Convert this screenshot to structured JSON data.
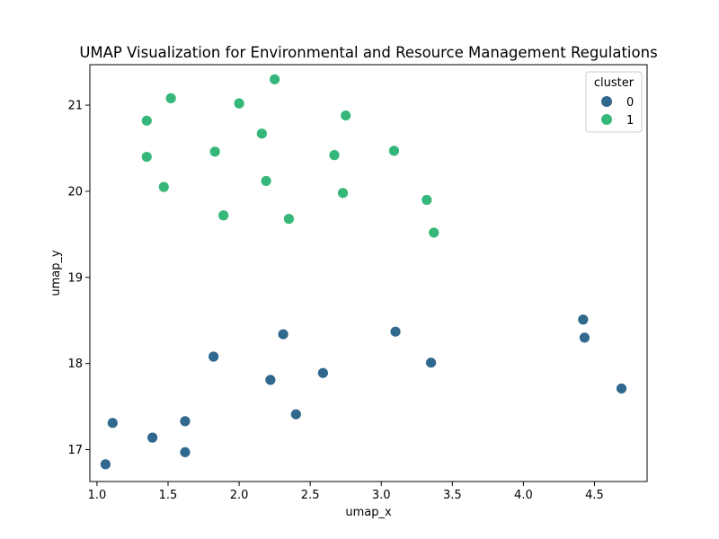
{
  "chart_data": {
    "type": "scatter",
    "title": "UMAP Visualization for Environmental and Resource Management Regulations",
    "xlabel": "umap_x",
    "ylabel": "umap_y",
    "xlim": [
      0.95,
      4.87
    ],
    "ylim": [
      16.63,
      21.47
    ],
    "xticks": [
      "1.0",
      "1.5",
      "2.0",
      "2.5",
      "3.0",
      "3.5",
      "4.0",
      "4.5"
    ],
    "xtick_values": [
      1.0,
      1.5,
      2.0,
      2.5,
      3.0,
      3.5,
      4.0,
      4.5
    ],
    "yticks": [
      "17",
      "18",
      "19",
      "20",
      "21"
    ],
    "ytick_values": [
      17,
      18,
      19,
      20,
      21
    ],
    "grid": false,
    "legend": {
      "title": "cluster",
      "placement": "top-right"
    },
    "series": [
      {
        "name": "0",
        "color": "#31688e",
        "points": [
          [
            1.06,
            16.83
          ],
          [
            1.11,
            17.31
          ],
          [
            1.39,
            17.14
          ],
          [
            1.62,
            17.33
          ],
          [
            1.62,
            16.97
          ],
          [
            1.82,
            18.08
          ],
          [
            2.22,
            17.81
          ],
          [
            2.31,
            18.34
          ],
          [
            2.4,
            17.41
          ],
          [
            2.59,
            17.89
          ],
          [
            3.1,
            18.37
          ],
          [
            3.35,
            18.01
          ],
          [
            4.42,
            18.51
          ],
          [
            4.43,
            18.3
          ],
          [
            4.69,
            17.71
          ]
        ]
      },
      {
        "name": "1",
        "color": "#35b779",
        "points": [
          [
            1.35,
            20.82
          ],
          [
            1.35,
            20.4
          ],
          [
            1.47,
            20.05
          ],
          [
            1.52,
            21.08
          ],
          [
            1.83,
            20.46
          ],
          [
            1.89,
            19.72
          ],
          [
            2.0,
            21.02
          ],
          [
            2.16,
            20.67
          ],
          [
            2.19,
            20.12
          ],
          [
            2.25,
            21.3
          ],
          [
            2.35,
            19.68
          ],
          [
            2.67,
            20.42
          ],
          [
            2.73,
            19.98
          ],
          [
            2.75,
            20.88
          ],
          [
            3.09,
            20.47
          ],
          [
            3.32,
            19.9
          ],
          [
            3.37,
            19.52
          ]
        ]
      }
    ]
  }
}
